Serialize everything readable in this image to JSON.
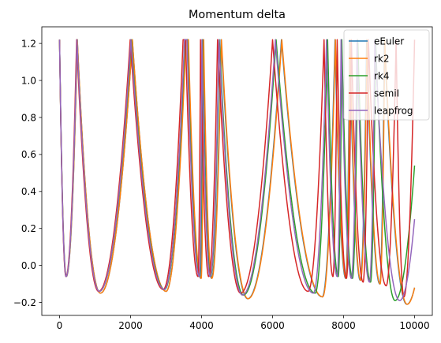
{
  "chart_data": {
    "type": "line",
    "title": "Momentum delta",
    "xlabel": "",
    "ylabel": "",
    "xlim": [
      -500,
      10500
    ],
    "ylim": [
      -0.27,
      1.29
    ],
    "xticks": [
      0,
      2000,
      4000,
      6000,
      8000,
      10000
    ],
    "xtick_labels": [
      "0",
      "2000",
      "4000",
      "6000",
      "8000",
      "10000"
    ],
    "yticks": [
      -0.2,
      0.0,
      0.2,
      0.4,
      0.6,
      0.8,
      1.0,
      1.2
    ],
    "ytick_labels": [
      "−0.2",
      "0.0",
      "0.2",
      "0.4",
      "0.6",
      "0.8",
      "1.0",
      "1.2"
    ],
    "grid": false,
    "legend_position": "top-right",
    "series": [
      {
        "name": "eEuler",
        "color": "#1f77b4",
        "x": [
          0,
          190,
          500,
          1150,
          2050,
          3000,
          3550,
          3620,
          3980,
          4050,
          4280,
          4550,
          5300,
          6250,
          7400,
          7760,
          8060,
          8170,
          8470,
          8650,
          9020,
          9150,
          9780,
          10000
        ],
        "y": [
          1.22,
          -0.06,
          1.22,
          -0.15,
          1.22,
          -0.14,
          1.22,
          1.22,
          -0.07,
          1.22,
          -0.07,
          1.22,
          -0.18,
          1.22,
          -0.17,
          1.22,
          -0.07,
          1.22,
          -0.08,
          1.22,
          -0.1,
          1.22,
          -0.21,
          -0.12
        ]
      },
      {
        "name": "rk2",
        "color": "#ff7f0e",
        "x": [
          0,
          190,
          500,
          1150,
          2050,
          3000,
          3560,
          3630,
          3990,
          4060,
          4290,
          4560,
          5310,
          6260,
          7410,
          7770,
          8070,
          8180,
          8480,
          8660,
          9030,
          9160,
          9790,
          10000
        ],
        "y": [
          1.22,
          -0.06,
          1.22,
          -0.15,
          1.22,
          -0.14,
          1.22,
          1.22,
          -0.07,
          1.22,
          -0.07,
          1.22,
          -0.18,
          1.22,
          -0.17,
          1.22,
          -0.07,
          1.22,
          -0.08,
          1.22,
          -0.1,
          1.22,
          -0.21,
          -0.12
        ]
      },
      {
        "name": "rk4",
        "color": "#2ca02c",
        "x": [
          0,
          185,
          490,
          1120,
          2020,
          2960,
          3530,
          3600,
          3950,
          4020,
          4250,
          4500,
          5180,
          6100,
          7200,
          7550,
          7850,
          7950,
          8250,
          8400,
          8760,
          8900,
          9450,
          10000
        ],
        "y": [
          1.22,
          -0.06,
          1.22,
          -0.14,
          1.22,
          -0.13,
          1.22,
          1.22,
          -0.06,
          1.22,
          -0.06,
          1.22,
          -0.16,
          1.22,
          -0.15,
          1.22,
          -0.06,
          1.22,
          -0.07,
          1.22,
          -0.09,
          1.22,
          -0.19,
          0.54
        ]
      },
      {
        "name": "semiI",
        "color": "#d62728",
        "x": [
          0,
          180,
          480,
          1100,
          1990,
          2920,
          3480,
          3550,
          3900,
          3970,
          4200,
          4450,
          5100,
          6000,
          7000,
          7450,
          7700,
          7820,
          8080,
          8220,
          8550,
          8700,
          9200,
          9480,
          9700,
          10000
        ],
        "y": [
          1.22,
          -0.06,
          1.22,
          -0.14,
          1.22,
          -0.13,
          1.22,
          1.22,
          -0.06,
          1.22,
          -0.06,
          1.22,
          -0.15,
          1.22,
          -0.14,
          1.22,
          -0.06,
          1.22,
          -0.07,
          1.22,
          -0.09,
          1.22,
          -0.11,
          1.22,
          -0.17,
          1.22
        ]
      },
      {
        "name": "leapfrog",
        "color": "#9467bd",
        "x": [
          0,
          185,
          490,
          1120,
          2010,
          2950,
          3520,
          3590,
          3940,
          4010,
          4240,
          4490,
          5150,
          6080,
          7150,
          7520,
          7820,
          7930,
          8220,
          8380,
          8730,
          8880,
          9580,
          10000
        ],
        "y": [
          1.22,
          -0.06,
          1.22,
          -0.14,
          1.22,
          -0.13,
          1.22,
          1.22,
          -0.06,
          1.22,
          -0.06,
          1.22,
          -0.16,
          1.22,
          -0.15,
          1.22,
          -0.06,
          1.22,
          -0.07,
          1.22,
          -0.09,
          1.22,
          -0.19,
          0.25
        ]
      }
    ]
  }
}
